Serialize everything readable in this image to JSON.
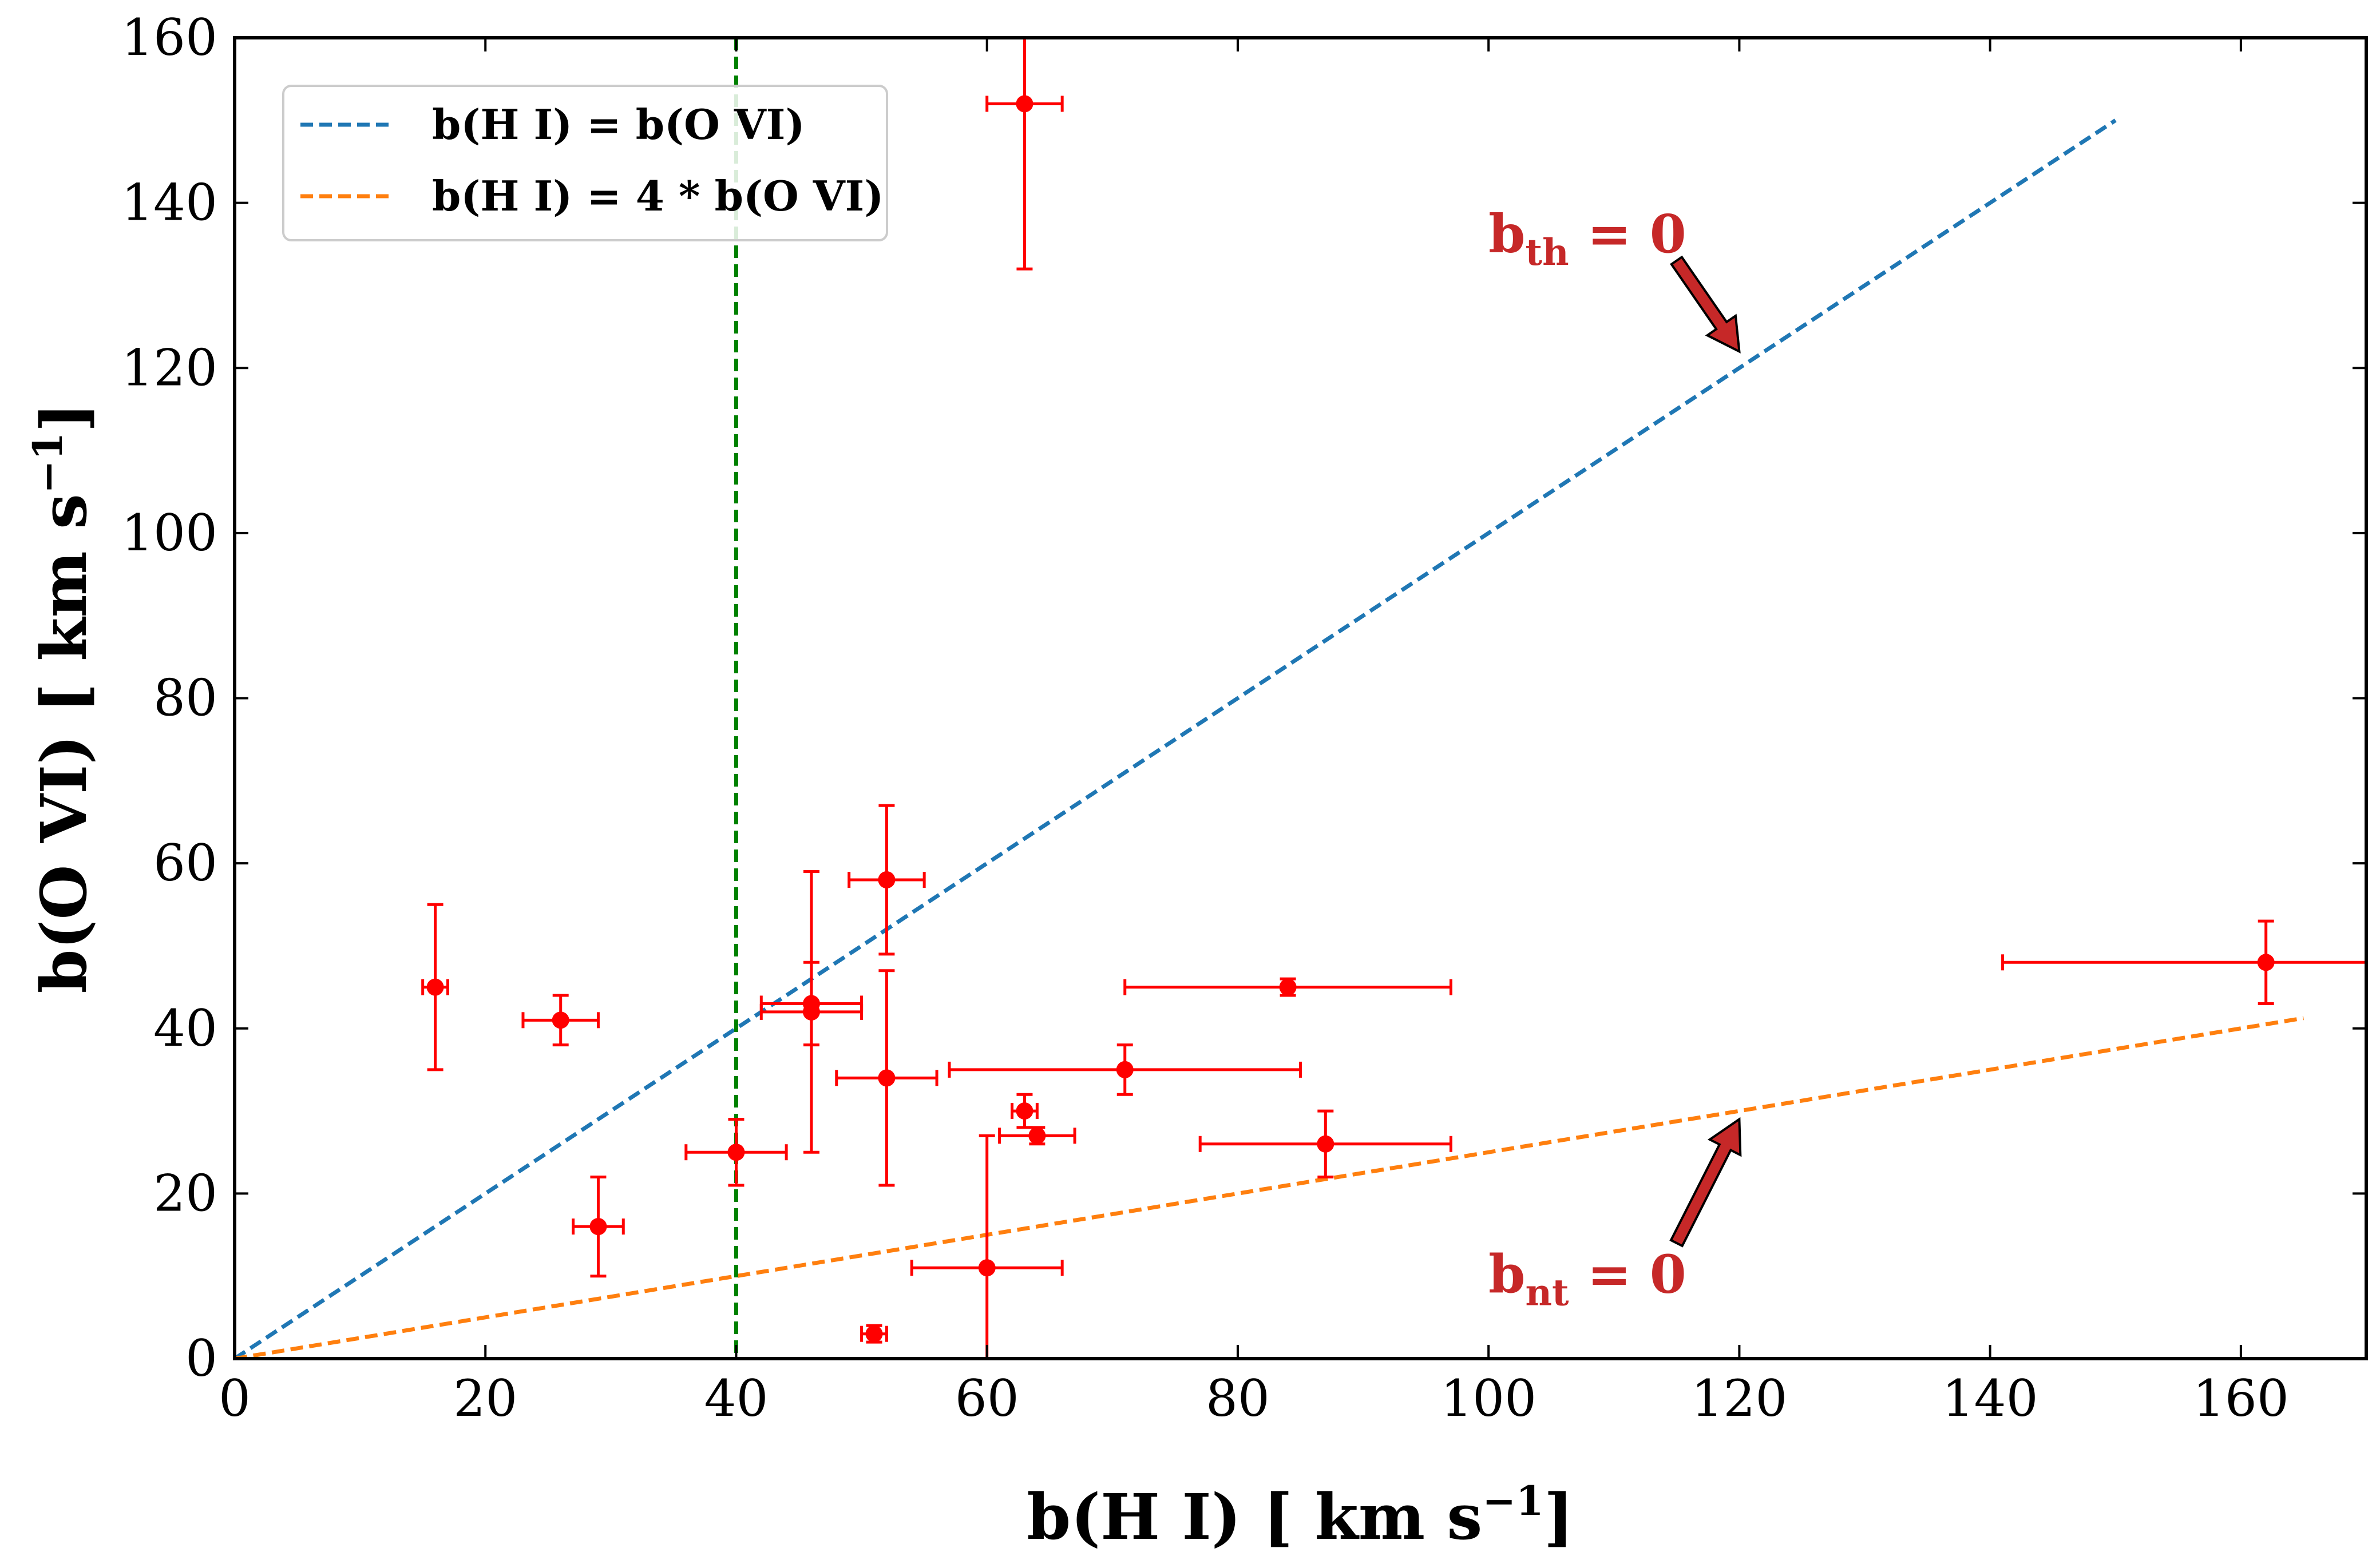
{
  "chart_data": {
    "type": "scatter",
    "xlabel": {
      "main": "b(H I) [ km s",
      "sup": "−1",
      "close": "]"
    },
    "ylabel": {
      "main": "b(O VI) [ km s",
      "sup": "−1",
      "close": "]"
    },
    "xlim": [
      0,
      170
    ],
    "ylim": [
      0,
      160
    ],
    "xticks": [
      0,
      20,
      40,
      60,
      80,
      100,
      120,
      140,
      160
    ],
    "yticks": [
      0,
      20,
      40,
      60,
      80,
      100,
      120,
      140,
      160
    ],
    "grid": false,
    "legend": {
      "position": "top-left",
      "entries": [
        {
          "label": "b(H I) = b(O VI)",
          "color": "#1f77b4"
        },
        {
          "label": "b(H I) = 4 * b(O VI)",
          "color": "#ff7f0e"
        }
      ]
    },
    "lines": [
      {
        "name": "b(H I) = b(O VI)",
        "color": "#1f77b4",
        "style": "dashed",
        "x": [
          0,
          150
        ],
        "y": [
          0,
          150
        ]
      },
      {
        "name": "b(H I) = 4 * b(O VI)",
        "color": "#ff7f0e",
        "style": "dashed",
        "x": [
          0,
          165
        ],
        "y": [
          0,
          41.25
        ]
      }
    ],
    "vline": {
      "x": 40,
      "color": "#008000",
      "style": "dashed"
    },
    "marker_color": "#ff0000",
    "points": [
      {
        "x": 16,
        "y": 45,
        "xerr": 1,
        "yerr": 10
      },
      {
        "x": 26,
        "y": 41,
        "xerr": 3,
        "yerr": 3
      },
      {
        "x": 29,
        "y": 16,
        "xerr": 2,
        "yerr": 6
      },
      {
        "x": 40,
        "y": 25,
        "xerr": 4,
        "yerr": 4
      },
      {
        "x": 46,
        "y": 43,
        "xerr": 4,
        "yerr": 5
      },
      {
        "x": 46,
        "y": 42,
        "xerr": 4,
        "yerr": 17,
        "yerr_hi": 17
      },
      {
        "x": 51,
        "y": 3,
        "xerr": 1,
        "yerr": 1
      },
      {
        "x": 52,
        "y": 58,
        "xerr": 3,
        "yerr": 9
      },
      {
        "x": 52,
        "y": 34,
        "xerr": 4,
        "yerr": 13
      },
      {
        "x": 60,
        "y": 11,
        "xerr": 6,
        "yerr_lo": 11,
        "yerr_hi": 16
      },
      {
        "x": 63,
        "y": 152,
        "xerr": 3,
        "yerr": 20
      },
      {
        "x": 63,
        "y": 30,
        "xerr": 1,
        "yerr": 2
      },
      {
        "x": 64,
        "y": 27,
        "xerr": 3,
        "yerr": 1
      },
      {
        "x": 71,
        "y": 35,
        "xerr": 14,
        "yerr": 3
      },
      {
        "x": 84,
        "y": 45,
        "xerr": 13,
        "yerr": 1
      },
      {
        "x": 87,
        "y": 26,
        "xerr": 10,
        "yerr": 4
      },
      {
        "x": 162,
        "y": 48,
        "xerr": 21,
        "yerr": 5
      }
    ],
    "annotations": [
      {
        "main": "b",
        "sub": "th",
        "rest": " = 0",
        "text_at": [
          100,
          134
        ],
        "arrow_from": [
          115,
          133
        ],
        "arrow_to": [
          120,
          122
        ],
        "color": "#c62828"
      },
      {
        "main": "b",
        "sub": "nt",
        "rest": " = 0",
        "text_at": [
          100,
          8
        ],
        "arrow_from": [
          115,
          14
        ],
        "arrow_to": [
          120,
          29
        ],
        "color": "#c62828"
      }
    ]
  }
}
